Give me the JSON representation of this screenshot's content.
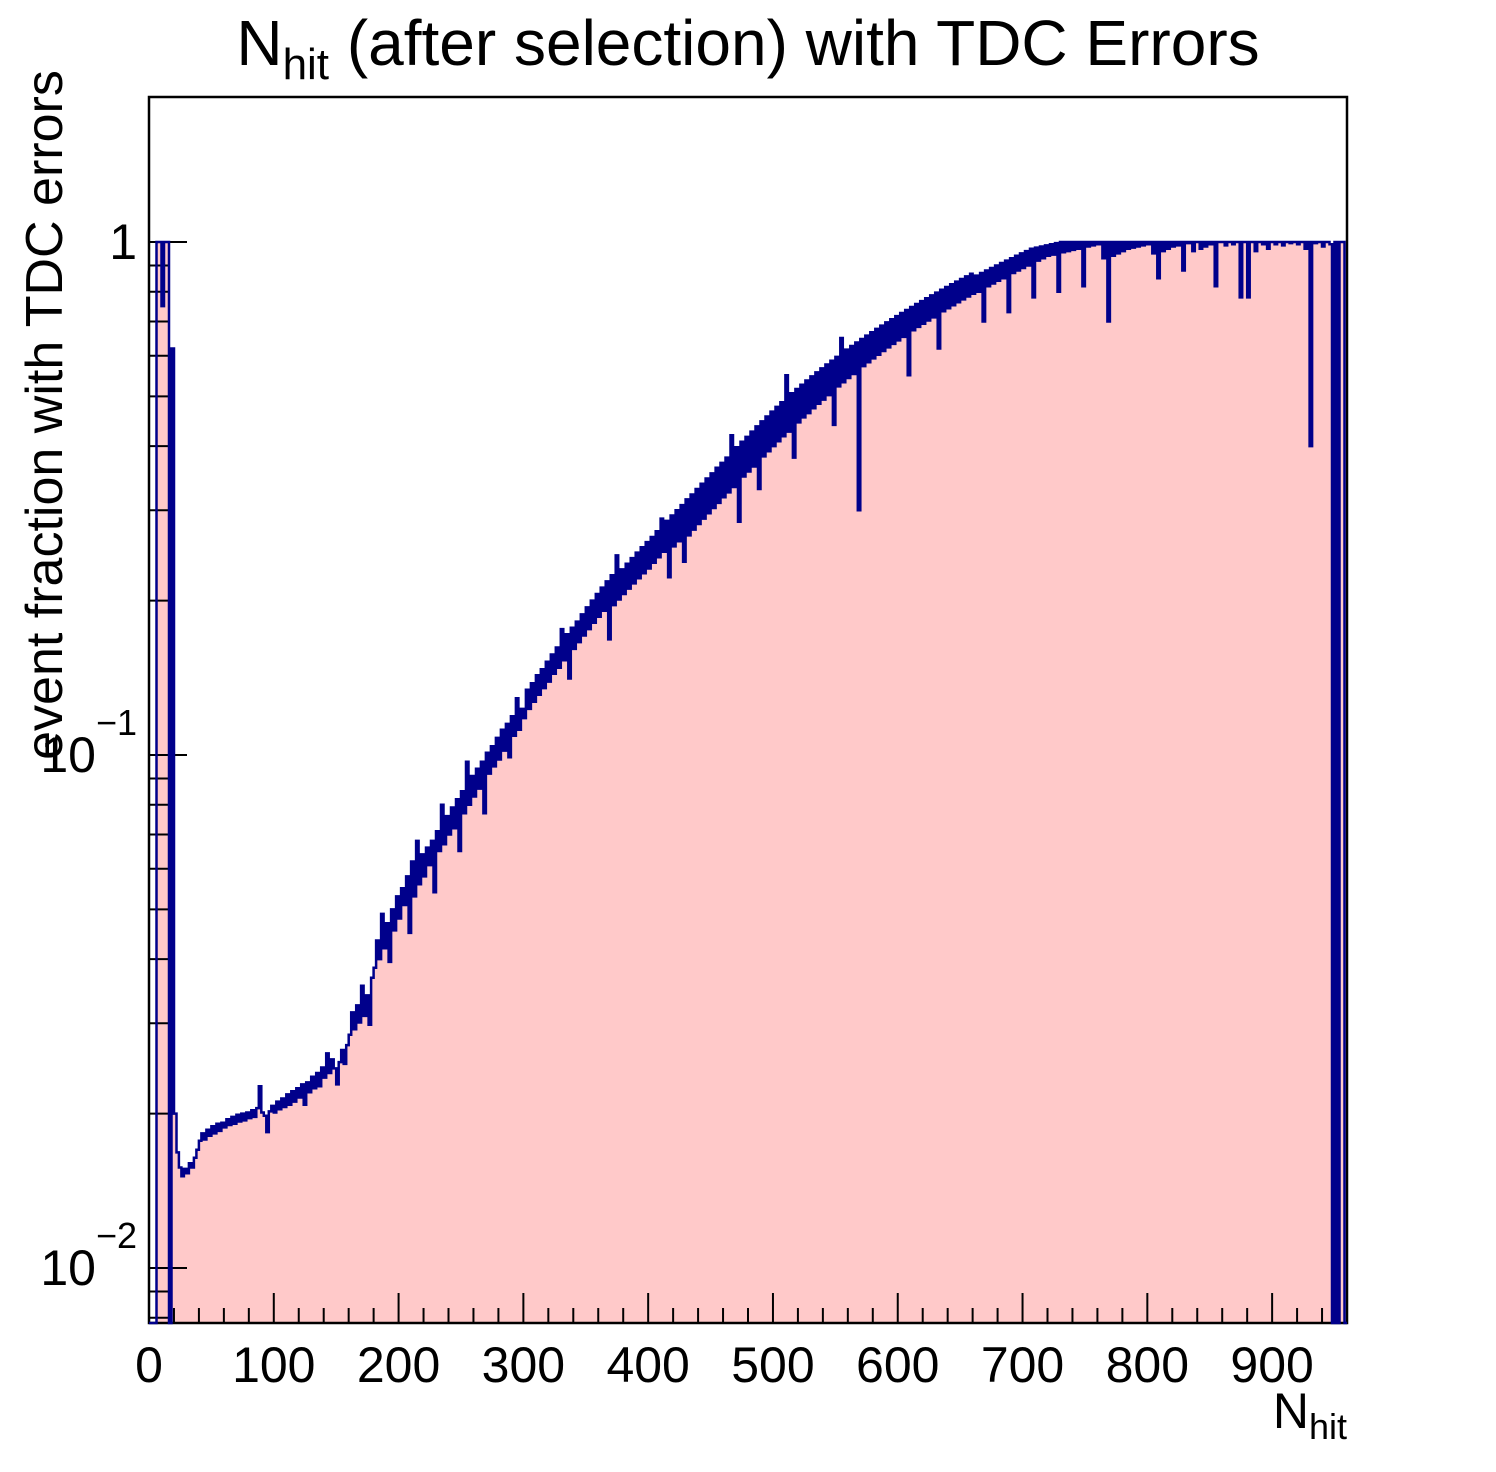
{
  "title": {
    "prefix": "N",
    "subscript": "hit",
    "suffix": " (after selection) with TDC Errors"
  },
  "y_axis_title": "event fraction with TDC errors",
  "x_axis_title": {
    "prefix": "N",
    "subscript": "hit"
  },
  "colors": {
    "fill": "#ffc9c9",
    "line": "#00008b",
    "axis": "#000000",
    "background": "#ffffff"
  },
  "chart_data": {
    "type": "bar",
    "title": "N_hit (after selection) with TDC Errors",
    "xlabel": "N_hit",
    "ylabel": "event fraction with TDC errors",
    "grid": false,
    "legend": "none",
    "x_axis": {
      "min": 0,
      "max": 960,
      "major_tick_step": 100,
      "minor_tick_step": 20,
      "tick_labels": [
        "0",
        "100",
        "200",
        "300",
        "400",
        "500",
        "600",
        "700",
        "800",
        "900"
      ]
    },
    "y_axis": {
      "scale": "log",
      "min": 0.0078,
      "max": 1.92,
      "tick_values": [
        1,
        0.1,
        0.01
      ],
      "tick_labels": [
        {
          "base": "1",
          "exp": ""
        },
        {
          "base": "10",
          "exp": "−1"
        },
        {
          "base": "10",
          "exp": "−2"
        }
      ]
    },
    "bin_width": 2,
    "bins": [
      0,
      0,
      0,
      1,
      1,
      0.75,
      1,
      1,
      0,
      0.62,
      0.02,
      0.0168,
      0.0157,
      0.0151,
      0.0156,
      0.0153,
      0.016,
      0.0157,
      0.0164,
      0.017,
      0.0177,
      0.0183,
      0.0178,
      0.0186,
      0.0181,
      0.0189,
      0.0183,
      0.0191,
      0.0185,
      0.0192,
      0.0188,
      0.0195,
      0.019,
      0.0197,
      0.0191,
      0.0199,
      0.0193,
      0.02,
      0.0194,
      0.0201,
      0.0196,
      0.0203,
      0.0197,
      0.0205,
      0.0226,
      0.0201,
      0.0198,
      0.0184,
      0.0202,
      0.0207,
      0.0201,
      0.0211,
      0.0204,
      0.0214,
      0.0206,
      0.0218,
      0.0208,
      0.0221,
      0.0211,
      0.0224,
      0.0215,
      0.0228,
      0.0208,
      0.023,
      0.022,
      0.0236,
      0.0224,
      0.024,
      0.0226,
      0.0246,
      0.0235,
      0.0262,
      0.024,
      0.0255,
      0.0245,
      0.0228,
      0.0252,
      0.0266,
      0.025,
      0.0272,
      0.0285,
      0.0315,
      0.0292,
      0.0325,
      0.0301,
      0.0355,
      0.031,
      0.034,
      0.0298,
      0.0368,
      0.0385,
      0.0435,
      0.04,
      0.049,
      0.042,
      0.047,
      0.0395,
      0.05,
      0.0455,
      0.053,
      0.048,
      0.055,
      0.051,
      0.058,
      0.045,
      0.062,
      0.053,
      0.068,
      0.056,
      0.064,
      0.058,
      0.066,
      0.061,
      0.068,
      0.054,
      0.071,
      0.065,
      0.08,
      0.067,
      0.076,
      0.07,
      0.079,
      0.072,
      0.082,
      0.065,
      0.085,
      0.077,
      0.097,
      0.08,
      0.091,
      0.083,
      0.094,
      0.086,
      0.097,
      0.077,
      0.101,
      0.092,
      0.104,
      0.095,
      0.108,
      0.098,
      0.112,
      0.102,
      0.115,
      0.099,
      0.119,
      0.109,
      0.129,
      0.112,
      0.123,
      0.118,
      0.134,
      0.123,
      0.138,
      0.127,
      0.143,
      0.131,
      0.147,
      0.135,
      0.152,
      0.139,
      0.157,
      0.144,
      0.162,
      0.148,
      0.176,
      0.153,
      0.172,
      0.141,
      0.177,
      0.161,
      0.182,
      0.166,
      0.188,
      0.171,
      0.194,
      0.176,
      0.2,
      0.181,
      0.206,
      0.186,
      0.212,
      0.191,
      0.218,
      0.168,
      0.224,
      0.196,
      0.245,
      0.201,
      0.23,
      0.206,
      0.236,
      0.211,
      0.242,
      0.216,
      0.248,
      0.221,
      0.254,
      0.226,
      0.26,
      0.231,
      0.266,
      0.237,
      0.273,
      0.243,
      0.289,
      0.249,
      0.286,
      0.222,
      0.293,
      0.255,
      0.3,
      0.261,
      0.307,
      0.238,
      0.315,
      0.268,
      0.322,
      0.275,
      0.33,
      0.282,
      0.338,
      0.289,
      0.346,
      0.296,
      0.354,
      0.303,
      0.363,
      0.31,
      0.371,
      0.318,
      0.38,
      0.325,
      0.42,
      0.333,
      0.398,
      0.285,
      0.408,
      0.349,
      0.417,
      0.357,
      0.427,
      0.365,
      0.437,
      0.33,
      0.447,
      0.382,
      0.457,
      0.391,
      0.467,
      0.4,
      0.477,
      0.409,
      0.487,
      0.418,
      0.55,
      0.427,
      0.507,
      0.38,
      0.517,
      0.445,
      0.527,
      0.455,
      0.537,
      0.464,
      0.547,
      0.474,
      0.557,
      0.484,
      0.567,
      0.493,
      0.577,
      0.503,
      0.587,
      0.44,
      0.597,
      0.523,
      0.65,
      0.533,
      0.617,
      0.543,
      0.627,
      0.553,
      0.637,
      0.3,
      0.647,
      0.573,
      0.657,
      0.583,
      0.667,
      0.593,
      0.677,
      0.603,
      0.687,
      0.613,
      0.697,
      0.623,
      0.707,
      0.633,
      0.717,
      0.643,
      0.727,
      0.653,
      0.737,
      0.55,
      0.747,
      0.673,
      0.757,
      0.683,
      0.767,
      0.693,
      0.777,
      0.703,
      0.787,
      0.713,
      0.797,
      0.62,
      0.807,
      0.733,
      0.817,
      0.743,
      0.827,
      0.753,
      0.837,
      0.763,
      0.847,
      0.773,
      0.857,
      0.783,
      0.867,
      0.793,
      0.86,
      0.8,
      0.87,
      0.7,
      0.88,
      0.82,
      0.89,
      0.83,
      0.9,
      0.84,
      0.91,
      0.85,
      0.92,
      0.73,
      0.93,
      0.87,
      0.94,
      0.88,
      0.95,
      0.89,
      0.96,
      0.9,
      0.97,
      0.78,
      0.975,
      0.92,
      0.98,
      0.93,
      0.985,
      0.94,
      0.99,
      0.945,
      0.995,
      0.8,
      1,
      0.955,
      1,
      0.96,
      1,
      0.965,
      1,
      0.97,
      1,
      0.82,
      1,
      0.98,
      1,
      0.985,
      1,
      0.99,
      1,
      0.93,
      1,
      0.7,
      1,
      0.94,
      1,
      0.95,
      1,
      0.96,
      1,
      0.97,
      1,
      0.975,
      1,
      0.98,
      1,
      0.985,
      1,
      0.99,
      1,
      0.95,
      1,
      0.85,
      1,
      0.96,
      1,
      0.97,
      1,
      0.98,
      1,
      0.985,
      1,
      0.88,
      1,
      0.995,
      1,
      0.96,
      1,
      1,
      0.97,
      1,
      0.98,
      1,
      0.99,
      1,
      0.82,
      1,
      1,
      1,
      0.985,
      1,
      1,
      0.99,
      1,
      1,
      0.78,
      1,
      1,
      0.78,
      1,
      1,
      0.96,
      1,
      1,
      0.99,
      1,
      0.97,
      1,
      1,
      0.99,
      1,
      1,
      0.985,
      1,
      1,
      0.995,
      1,
      1,
      0.99,
      1,
      1,
      0.97,
      1,
      0.4,
      1,
      0.995,
      1,
      1,
      0.98,
      1,
      1,
      0.99,
      0,
      1,
      0,
      1,
      1,
      0
    ]
  }
}
